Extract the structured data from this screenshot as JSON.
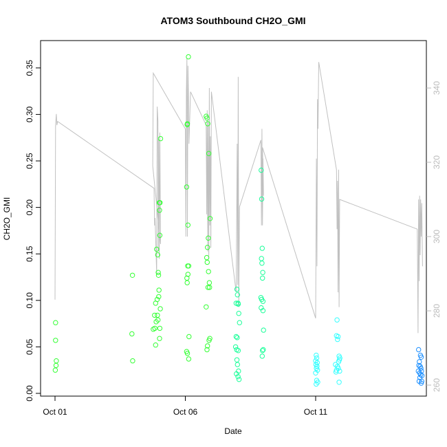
{
  "chart_data": {
    "type": "scatter",
    "title": "ATOM3 Southbound CH2O_GMI",
    "xlabel": "Date",
    "ylabel": "CH2O_GMI",
    "x_ticks": [
      "Oct 01",
      "Oct 06",
      "Oct 11"
    ],
    "y_ticks": [
      "0.00",
      "0.05",
      "0.10",
      "0.15",
      "0.20",
      "0.25",
      "0.30",
      "0.35"
    ],
    "right_ticks": [
      "260",
      "280",
      "300",
      "320",
      "340"
    ],
    "xlim": [
      0,
      14.3
    ],
    "ylim": [
      0,
      0.36
    ],
    "right_ylim": [
      258,
      351
    ],
    "colors": {
      "green": "#33ff33",
      "spring": "#19ff99",
      "cyan": "#33ffff",
      "blue": "#1e90ff",
      "line": "#c0c0c0"
    },
    "points": [
      {
        "x": 0.02,
        "y": 0.076,
        "c": "green"
      },
      {
        "x": 0.02,
        "y": 0.057,
        "c": "green"
      },
      {
        "x": 0.05,
        "y": 0.035,
        "c": "green"
      },
      {
        "x": 0.04,
        "y": 0.03,
        "c": "green"
      },
      {
        "x": 0.01,
        "y": 0.025,
        "c": "green"
      },
      {
        "x": 2.97,
        "y": 0.127,
        "c": "green"
      },
      {
        "x": 2.95,
        "y": 0.064,
        "c": "green"
      },
      {
        "x": 2.98,
        "y": 0.035,
        "c": "green"
      },
      {
        "x": 3.77,
        "y": 0.069,
        "c": "green"
      },
      {
        "x": 3.82,
        "y": 0.084,
        "c": "green"
      },
      {
        "x": 3.86,
        "y": 0.097,
        "c": "green"
      },
      {
        "x": 3.88,
        "y": 0.077,
        "c": "green"
      },
      {
        "x": 3.83,
        "y": 0.07,
        "c": "green"
      },
      {
        "x": 3.9,
        "y": 0.155,
        "c": "green"
      },
      {
        "x": 3.92,
        "y": 0.101,
        "c": "green"
      },
      {
        "x": 3.94,
        "y": 0.149,
        "c": "green"
      },
      {
        "x": 3.93,
        "y": 0.084,
        "c": "green"
      },
      {
        "x": 3.95,
        "y": 0.079,
        "c": "green"
      },
      {
        "x": 3.96,
        "y": 0.13,
        "c": "green"
      },
      {
        "x": 3.97,
        "y": 0.127,
        "c": "green"
      },
      {
        "x": 3.98,
        "y": 0.104,
        "c": "green"
      },
      {
        "x": 3.99,
        "y": 0.111,
        "c": "green"
      },
      {
        "x": 4.0,
        "y": 0.205,
        "c": "green"
      },
      {
        "x": 4.01,
        "y": 0.197,
        "c": "green"
      },
      {
        "x": 4.02,
        "y": 0.17,
        "c": "green"
      },
      {
        "x": 4.03,
        "y": 0.205,
        "c": "green"
      },
      {
        "x": 4.04,
        "y": 0.091,
        "c": "green"
      },
      {
        "x": 4.05,
        "y": 0.274,
        "c": "green"
      },
      {
        "x": 4.02,
        "y": 0.07,
        "c": "green"
      },
      {
        "x": 4.01,
        "y": 0.059,
        "c": "green"
      },
      {
        "x": 3.86,
        "y": 0.052,
        "c": "green"
      },
      {
        "x": 5.05,
        "y": 0.222,
        "c": "green"
      },
      {
        "x": 5.07,
        "y": 0.289,
        "c": "green"
      },
      {
        "x": 5.08,
        "y": 0.29,
        "c": "green"
      },
      {
        "x": 5.12,
        "y": 0.362,
        "c": "green"
      },
      {
        "x": 5.1,
        "y": 0.181,
        "c": "green"
      },
      {
        "x": 5.09,
        "y": 0.137,
        "c": "green"
      },
      {
        "x": 5.13,
        "y": 0.137,
        "c": "green"
      },
      {
        "x": 5.06,
        "y": 0.124,
        "c": "green"
      },
      {
        "x": 5.1,
        "y": 0.128,
        "c": "green"
      },
      {
        "x": 5.07,
        "y": 0.119,
        "c": "green"
      },
      {
        "x": 5.05,
        "y": 0.045,
        "c": "green"
      },
      {
        "x": 5.08,
        "y": 0.043,
        "c": "green"
      },
      {
        "x": 5.14,
        "y": 0.061,
        "c": "green"
      },
      {
        "x": 5.13,
        "y": 0.037,
        "c": "green"
      },
      {
        "x": 5.8,
        "y": 0.298,
        "c": "green"
      },
      {
        "x": 5.83,
        "y": 0.296,
        "c": "green"
      },
      {
        "x": 5.86,
        "y": 0.29,
        "c": "green"
      },
      {
        "x": 5.9,
        "y": 0.258,
        "c": "green"
      },
      {
        "x": 5.95,
        "y": 0.188,
        "c": "green"
      },
      {
        "x": 5.88,
        "y": 0.167,
        "c": "green"
      },
      {
        "x": 5.85,
        "y": 0.157,
        "c": "green"
      },
      {
        "x": 5.82,
        "y": 0.146,
        "c": "green"
      },
      {
        "x": 5.84,
        "y": 0.141,
        "c": "green"
      },
      {
        "x": 5.89,
        "y": 0.131,
        "c": "green"
      },
      {
        "x": 5.92,
        "y": 0.119,
        "c": "green"
      },
      {
        "x": 5.87,
        "y": 0.114,
        "c": "green"
      },
      {
        "x": 5.93,
        "y": 0.114,
        "c": "green"
      },
      {
        "x": 5.8,
        "y": 0.093,
        "c": "green"
      },
      {
        "x": 5.94,
        "y": 0.059,
        "c": "green"
      },
      {
        "x": 5.91,
        "y": 0.057,
        "c": "green"
      },
      {
        "x": 5.85,
        "y": 0.051,
        "c": "green"
      },
      {
        "x": 5.83,
        "y": 0.047,
        "c": "green"
      },
      {
        "x": 6.95,
        "y": 0.097,
        "c": "spring"
      },
      {
        "x": 6.98,
        "y": 0.112,
        "c": "spring"
      },
      {
        "x": 7.0,
        "y": 0.106,
        "c": "spring"
      },
      {
        "x": 7.03,
        "y": 0.096,
        "c": "spring"
      },
      {
        "x": 7.02,
        "y": 0.097,
        "c": "spring"
      },
      {
        "x": 7.05,
        "y": 0.086,
        "c": "spring"
      },
      {
        "x": 7.08,
        "y": 0.076,
        "c": "spring"
      },
      {
        "x": 6.95,
        "y": 0.061,
        "c": "spring"
      },
      {
        "x": 6.99,
        "y": 0.06,
        "c": "spring"
      },
      {
        "x": 6.93,
        "y": 0.05,
        "c": "spring"
      },
      {
        "x": 6.97,
        "y": 0.047,
        "c": "spring"
      },
      {
        "x": 7.03,
        "y": 0.046,
        "c": "spring"
      },
      {
        "x": 6.98,
        "y": 0.036,
        "c": "spring"
      },
      {
        "x": 7.0,
        "y": 0.031,
        "c": "spring"
      },
      {
        "x": 7.04,
        "y": 0.024,
        "c": "spring"
      },
      {
        "x": 6.96,
        "y": 0.021,
        "c": "spring"
      },
      {
        "x": 7.02,
        "y": 0.018,
        "c": "spring"
      },
      {
        "x": 7.06,
        "y": 0.015,
        "c": "spring"
      },
      {
        "x": 7.91,
        "y": 0.24,
        "c": "spring"
      },
      {
        "x": 7.93,
        "y": 0.209,
        "c": "spring"
      },
      {
        "x": 7.95,
        "y": 0.156,
        "c": "spring"
      },
      {
        "x": 7.92,
        "y": 0.145,
        "c": "spring"
      },
      {
        "x": 7.94,
        "y": 0.14,
        "c": "spring"
      },
      {
        "x": 7.96,
        "y": 0.124,
        "c": "spring"
      },
      {
        "x": 7.97,
        "y": 0.13,
        "c": "spring"
      },
      {
        "x": 7.9,
        "y": 0.103,
        "c": "spring"
      },
      {
        "x": 7.93,
        "y": 0.101,
        "c": "spring"
      },
      {
        "x": 7.98,
        "y": 0.099,
        "c": "spring"
      },
      {
        "x": 7.91,
        "y": 0.092,
        "c": "spring"
      },
      {
        "x": 7.98,
        "y": 0.089,
        "c": "spring"
      },
      {
        "x": 8.0,
        "y": 0.068,
        "c": "spring"
      },
      {
        "x": 7.99,
        "y": 0.047,
        "c": "spring"
      },
      {
        "x": 7.96,
        "y": 0.046,
        "c": "spring"
      },
      {
        "x": 7.95,
        "y": 0.04,
        "c": "spring"
      },
      {
        "x": 10.02,
        "y": 0.041,
        "c": "cyan"
      },
      {
        "x": 10.04,
        "y": 0.038,
        "c": "cyan"
      },
      {
        "x": 10.0,
        "y": 0.035,
        "c": "cyan"
      },
      {
        "x": 10.06,
        "y": 0.033,
        "c": "cyan"
      },
      {
        "x": 10.01,
        "y": 0.031,
        "c": "cyan"
      },
      {
        "x": 10.05,
        "y": 0.029,
        "c": "cyan"
      },
      {
        "x": 10.03,
        "y": 0.027,
        "c": "cyan"
      },
      {
        "x": 10.07,
        "y": 0.025,
        "c": "cyan"
      },
      {
        "x": 10.0,
        "y": 0.022,
        "c": "cyan"
      },
      {
        "x": 10.04,
        "y": 0.014,
        "c": "cyan"
      },
      {
        "x": 10.08,
        "y": 0.012,
        "c": "cyan"
      },
      {
        "x": 10.02,
        "y": 0.01,
        "c": "cyan"
      },
      {
        "x": 10.82,
        "y": 0.079,
        "c": "cyan"
      },
      {
        "x": 10.8,
        "y": 0.062,
        "c": "cyan"
      },
      {
        "x": 10.86,
        "y": 0.061,
        "c": "cyan"
      },
      {
        "x": 10.84,
        "y": 0.058,
        "c": "cyan"
      },
      {
        "x": 10.9,
        "y": 0.04,
        "c": "cyan"
      },
      {
        "x": 10.93,
        "y": 0.038,
        "c": "cyan"
      },
      {
        "x": 10.91,
        "y": 0.036,
        "c": "cyan"
      },
      {
        "x": 10.88,
        "y": 0.034,
        "c": "cyan"
      },
      {
        "x": 10.76,
        "y": 0.031,
        "c": "cyan"
      },
      {
        "x": 10.83,
        "y": 0.029,
        "c": "cyan"
      },
      {
        "x": 10.87,
        "y": 0.027,
        "c": "cyan"
      },
      {
        "x": 10.8,
        "y": 0.025,
        "c": "cyan"
      },
      {
        "x": 10.92,
        "y": 0.024,
        "c": "cyan"
      },
      {
        "x": 10.78,
        "y": 0.023,
        "c": "cyan"
      },
      {
        "x": 10.9,
        "y": 0.012,
        "c": "cyan"
      },
      {
        "x": 13.95,
        "y": 0.047,
        "c": "blue"
      },
      {
        "x": 14.02,
        "y": 0.041,
        "c": "blue"
      },
      {
        "x": 14.05,
        "y": 0.039,
        "c": "blue"
      },
      {
        "x": 13.98,
        "y": 0.034,
        "c": "blue"
      },
      {
        "x": 13.96,
        "y": 0.03,
        "c": "blue"
      },
      {
        "x": 14.01,
        "y": 0.029,
        "c": "blue"
      },
      {
        "x": 14.04,
        "y": 0.027,
        "c": "blue"
      },
      {
        "x": 13.94,
        "y": 0.024,
        "c": "blue"
      },
      {
        "x": 14.06,
        "y": 0.024,
        "c": "blue"
      },
      {
        "x": 13.99,
        "y": 0.022,
        "c": "blue"
      },
      {
        "x": 14.03,
        "y": 0.02,
        "c": "blue"
      },
      {
        "x": 14.08,
        "y": 0.019,
        "c": "blue"
      },
      {
        "x": 14.0,
        "y": 0.017,
        "c": "blue"
      },
      {
        "x": 14.07,
        "y": 0.013,
        "c": "blue"
      },
      {
        "x": 13.97,
        "y": 0.013,
        "c": "blue"
      },
      {
        "x": 14.05,
        "y": 0.011,
        "c": "blue"
      }
    ],
    "line_right_axis": [
      [
        0.0,
        283
      ],
      [
        0.02,
        330
      ],
      [
        0.05,
        333
      ],
      [
        0.07,
        330
      ],
      [
        0.1,
        331
      ],
      [
        3.8,
        313
      ],
      [
        3.82,
        303
      ],
      [
        3.84,
        305
      ],
      [
        3.9,
        290
      ],
      [
        3.92,
        335
      ],
      [
        3.95,
        331
      ],
      [
        3.96,
        296
      ],
      [
        3.98,
        326
      ],
      [
        4.0,
        294
      ],
      [
        4.02,
        328
      ],
      [
        4.05,
        298
      ],
      [
        3.75,
        319
      ],
      [
        3.77,
        344
      ],
      [
        5.0,
        329
      ],
      [
        5.02,
        300
      ],
      [
        5.04,
        339
      ],
      [
        5.06,
        348
      ],
      [
        5.08,
        300
      ],
      [
        5.1,
        346
      ],
      [
        5.12,
        339
      ],
      [
        5.14,
        325
      ],
      [
        5.2,
        339
      ],
      [
        5.8,
        330
      ],
      [
        5.82,
        306
      ],
      [
        5.84,
        334
      ],
      [
        5.86,
        296
      ],
      [
        5.88,
        331
      ],
      [
        5.9,
        294
      ],
      [
        5.92,
        340
      ],
      [
        5.94,
        303
      ],
      [
        5.96,
        327
      ],
      [
        5.98,
        297
      ],
      [
        6.0,
        339
      ],
      [
        6.95,
        285
      ],
      [
        6.97,
        306
      ],
      [
        6.99,
        325
      ],
      [
        7.01,
        287
      ],
      [
        7.03,
        343
      ],
      [
        7.05,
        281
      ],
      [
        7.08,
        308
      ],
      [
        7.9,
        326
      ],
      [
        7.92,
        303
      ],
      [
        7.94,
        329
      ],
      [
        7.96,
        303
      ],
      [
        7.98,
        321
      ],
      [
        8.0,
        311
      ],
      [
        7.96,
        324
      ],
      [
        10.0,
        278
      ],
      [
        10.03,
        321
      ],
      [
        10.05,
        292
      ],
      [
        10.07,
        337
      ],
      [
        10.09,
        329
      ],
      [
        10.12,
        347
      ],
      [
        10.8,
        318
      ],
      [
        10.82,
        302
      ],
      [
        10.84,
        315
      ],
      [
        10.86,
        285
      ],
      [
        10.88,
        318
      ],
      [
        10.9,
        281
      ],
      [
        10.92,
        310
      ],
      [
        13.9,
        302
      ],
      [
        13.93,
        274
      ],
      [
        13.95,
        310
      ],
      [
        13.97,
        288
      ],
      [
        13.99,
        311
      ],
      [
        14.01,
        295
      ],
      [
        14.03,
        310
      ],
      [
        14.05,
        300
      ],
      [
        14.07,
        309
      ],
      [
        14.1,
        292
      ]
    ]
  }
}
